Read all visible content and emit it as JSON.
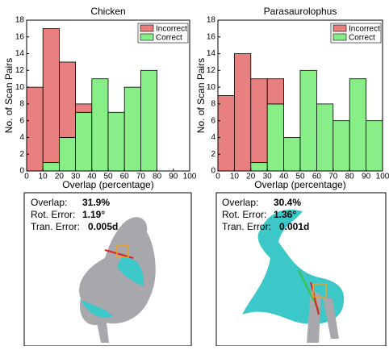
{
  "chart_data": [
    {
      "type": "histogram",
      "title": "Chicken",
      "x_label": "Overlap (percentage)",
      "y_label": "No. of Scan Pairs",
      "bins": [
        0,
        10,
        20,
        30,
        40,
        50,
        60,
        70,
        80
      ],
      "series": [
        {
          "name": "Incorrect",
          "color": "#e88080",
          "values": [
            10,
            16,
            9,
            1,
            0,
            0,
            0,
            0
          ]
        },
        {
          "name": "Correct",
          "color": "#88ee88",
          "values": [
            0,
            1,
            4,
            7,
            11,
            7,
            10,
            12
          ]
        }
      ],
      "xlim": [
        0,
        100
      ],
      "xticks": [
        0,
        10,
        20,
        30,
        40,
        50,
        60,
        70,
        80,
        90,
        100
      ],
      "ylim": [
        0,
        18
      ],
      "yticks": [
        0,
        2,
        4,
        6,
        8,
        10,
        12,
        14,
        16,
        18
      ],
      "legend": "upper right"
    },
    {
      "type": "histogram",
      "title": "Parasaurolophus",
      "x_label": "Overlap (percentage)",
      "y_label": "No. of Scan Pairs",
      "bins": [
        0,
        10,
        20,
        30,
        40,
        50,
        60,
        70,
        80,
        90,
        100
      ],
      "series": [
        {
          "name": "Incorrect",
          "color": "#e88080",
          "values": [
            9,
            14,
            10,
            3,
            0,
            0,
            0,
            0,
            0,
            0
          ]
        },
        {
          "name": "Correct",
          "color": "#88ee88",
          "values": [
            0,
            0,
            1,
            8,
            4,
            12,
            8,
            6,
            11,
            6
          ]
        }
      ],
      "xlim": [
        0,
        100
      ],
      "xticks": [
        0,
        10,
        20,
        30,
        40,
        50,
        60,
        70,
        80,
        90,
        100
      ],
      "ylim": [
        0,
        18
      ],
      "yticks": [
        0,
        2,
        4,
        6,
        8,
        10,
        12,
        14,
        16,
        18
      ],
      "legend": "upper right"
    }
  ],
  "panels": [
    {
      "overlap_label": "Overlap:",
      "overlap": "31.9%",
      "rot_label": "Rot. Error:",
      "rot": "1.19°",
      "tran_label": "Tran. Error:",
      "tran": "0.005d"
    },
    {
      "overlap_label": "Overlap:",
      "overlap": "30.4%",
      "rot_label": "Rot. Error:",
      "rot": "1.36°",
      "tran_label": "Tran. Error:",
      "tran": "0.001d"
    }
  ]
}
